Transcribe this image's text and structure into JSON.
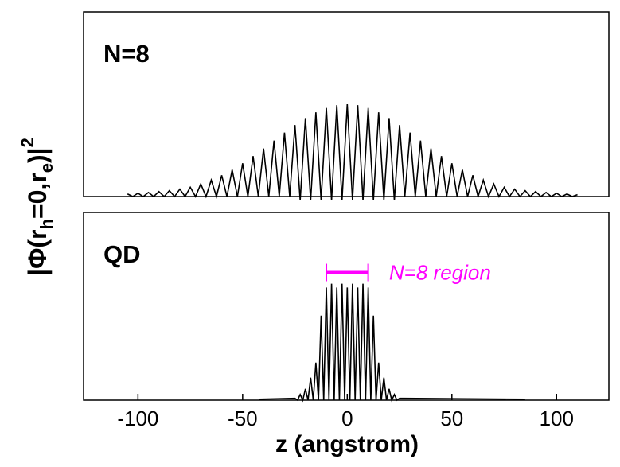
{
  "chart_data": [
    {
      "type": "line",
      "annotation": "N=8",
      "ylabel": [
        "|Φ(r",
        "h",
        "=0,r",
        "e",
        ")|",
        "2"
      ],
      "xlim": [
        -126,
        125
      ],
      "ylim": [
        0,
        1
      ],
      "color": "#000000",
      "x": [
        -105,
        -102.5,
        -100,
        -97.5,
        -95,
        -92.5,
        -90,
        -87.5,
        -85,
        -82.5,
        -80,
        -77.5,
        -75,
        -72.5,
        -70,
        -67.5,
        -65,
        -62.5,
        -60,
        -57.5,
        -55,
        -52.5,
        -50,
        -47.5,
        -45,
        -42.5,
        -40,
        -37.5,
        -35,
        -32.5,
        -30,
        -27.5,
        -25,
        -22.5,
        -20,
        -17.5,
        -15,
        -12.5,
        -10,
        -7.5,
        -5,
        -2.5,
        0,
        2.5,
        5,
        7.5,
        10,
        12.5,
        15,
        17.5,
        20,
        22.5,
        25,
        27.5,
        30,
        32.5,
        35,
        37.5,
        40,
        42.5,
        45,
        47.5,
        50,
        52.5,
        55,
        57.5,
        60,
        62.5,
        65,
        67.5,
        70,
        72.5,
        75,
        77.5,
        80,
        82.5,
        85,
        87.5,
        90,
        92.5,
        95,
        97.5,
        100,
        102.5,
        105,
        107.5,
        110
      ],
      "values": [
        0.014,
        0,
        0.018,
        0,
        0.022,
        0,
        0.027,
        0,
        0.032,
        0,
        0.04,
        0,
        0.05,
        0,
        0.068,
        0,
        0.089,
        0,
        0.115,
        0,
        0.145,
        0,
        0.18,
        0,
        0.219,
        0,
        0.26,
        0,
        0.303,
        0,
        0.346,
        0,
        0.387,
        -0.02,
        0.425,
        -0.02,
        0.456,
        -0.02,
        0.48,
        -0.02,
        0.495,
        -0.02,
        0.5,
        -0.02,
        0.495,
        -0.02,
        0.48,
        -0.02,
        0.456,
        -0.02,
        0.425,
        -0.02,
        0.387,
        0,
        0.346,
        0,
        0.303,
        0,
        0.26,
        0,
        0.219,
        0,
        0.18,
        0,
        0.145,
        0,
        0.115,
        0,
        0.089,
        0,
        0.068,
        0,
        0.05,
        0,
        0.04,
        0,
        0.032,
        0,
        0.027,
        0,
        0.022,
        0,
        0.018,
        0,
        0.014,
        0,
        0.01
      ]
    },
    {
      "type": "line",
      "annotation": "QD",
      "xlabel": "z (angstrom)",
      "xlim": [
        -126,
        125
      ],
      "ylim": [
        0,
        1
      ],
      "color": "#000000",
      "xticks": [
        -100,
        -50,
        0,
        50,
        100
      ],
      "x": [
        -42,
        -25,
        -23.75,
        -22.5,
        -21.25,
        -20,
        -18.75,
        -17.5,
        -16.25,
        -15,
        -13.75,
        -12.5,
        -11.25,
        -10,
        -8.75,
        -7.5,
        -6.25,
        -5,
        -3.75,
        -2.5,
        -1.25,
        0,
        1.25,
        2.5,
        3.75,
        5,
        6.25,
        7.5,
        8.75,
        10,
        11.25,
        12.5,
        13.75,
        15,
        16.25,
        17.5,
        18.75,
        20,
        21.25,
        22.5,
        23.75,
        25,
        85
      ],
      "values": [
        0.005,
        0.01,
        0,
        0.03,
        0,
        0.06,
        0,
        0.12,
        0,
        0.2,
        0,
        0.45,
        0,
        0.6,
        0,
        0.62,
        0,
        0.6,
        0,
        0.62,
        0,
        0.6,
        0,
        0.62,
        0,
        0.6,
        0,
        0.62,
        0,
        0.6,
        0,
        0.45,
        0,
        0.2,
        0,
        0.12,
        0,
        0.06,
        0,
        0.03,
        0,
        0.01,
        0.005
      ],
      "region": {
        "text": "N=8 region",
        "range": [
          -10,
          10
        ],
        "y": 0.68,
        "label_x": 20,
        "color": "#ff00ff"
      }
    }
  ]
}
